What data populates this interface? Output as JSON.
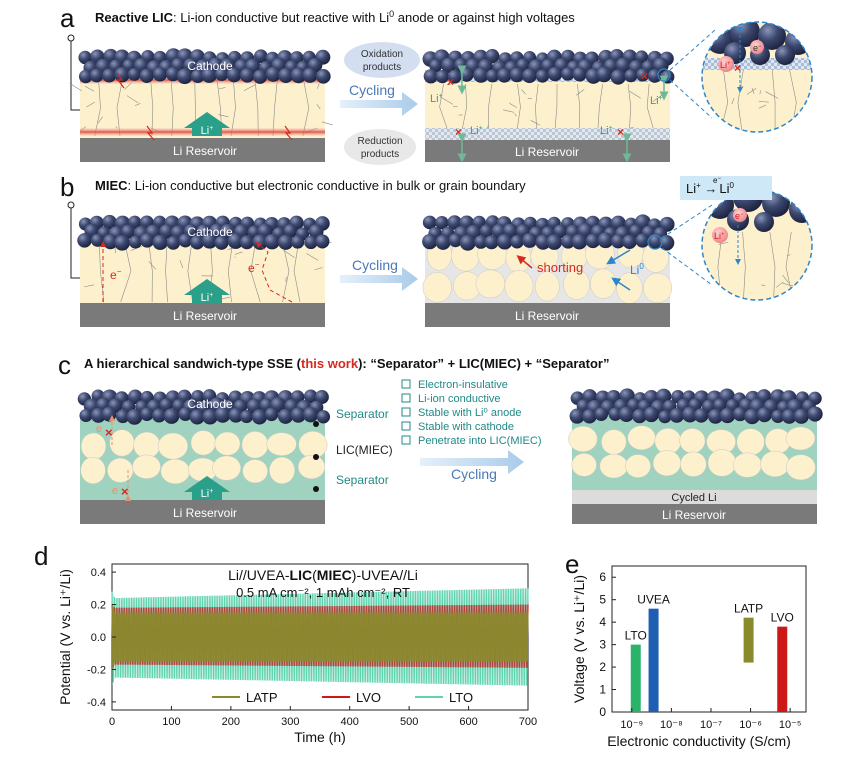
{
  "colors": {
    "cathode_ball": "#3b4668",
    "electrolyte": "#fdf0cc",
    "grain_line": "#8a8a8a",
    "reservoir": "#7a7a7a",
    "separator": "#9fd3bf",
    "red": "#d62a1e",
    "teal_text": "#1f8a86",
    "arrow_blue": "#b9d7ee",
    "latp": "#8a8a2c",
    "lvo": "#cc1818",
    "lto": "#62d3b0",
    "uvea": "#1f5fb3",
    "lto_bar": "#2bb36a"
  },
  "panel_a": {
    "letter": "a",
    "title_bold": "Reactive LIC",
    "title_rest": ": Li-ion conductive but reactive with Li",
    "title_sup": "0",
    "title_tail": " anode or against high voltages",
    "cathode": "Cathode",
    "li_ion": "Li",
    "li_ion_sup": "+",
    "reservoir": "Li Reservoir",
    "oxidation": "Oxidation products",
    "reduction": "Reduction products",
    "cycling": "Cycling",
    "zoom_eminus": "e",
    "zoom_eminus_sup": "−",
    "zoom_li": "Li",
    "zoom_li_sup": "+"
  },
  "panel_b": {
    "letter": "b",
    "title_bold": "MIEC",
    "title_rest": ": Li-ion conductive but electronic conductive in bulk or grain boundary",
    "cathode": "Cathode",
    "e_label": "e",
    "e_sup": "−",
    "li_ion": "Li",
    "li_ion_sup": "+",
    "reservoir": "Li Reservoir",
    "cycling": "Cycling",
    "shorting": "shorting",
    "li0": "Li",
    "li0_sup": "0",
    "reaction_li": "Li",
    "reaction_li_sup": "+",
    "reaction_e": "e",
    "reaction_e_sup": "−",
    "reaction_product": "Li",
    "reaction_product_sup": "0"
  },
  "panel_c": {
    "letter": "c",
    "title_pre": "A hierarchical sandwich-type SSE (",
    "title_red": "this work",
    "title_post": "): “Separator” + LIC(MIEC) + “Separator”",
    "cathode": "Cathode",
    "separator_top": "Separator",
    "middle": "LIC(MIEC)",
    "separator_bottom": "Separator",
    "li_ion": "Li",
    "li_ion_sup": "+",
    "e_label": "e",
    "reservoir": "Li Reservoir",
    "cycling": "Cycling",
    "cycled_li": "Cycled Li",
    "features": [
      "Electron-insulative",
      "Li-ion conductive",
      "Stable with Li⁰ anode",
      "Stable with cathode",
      "Penetrate into LIC(MIEC)"
    ]
  },
  "panel_d": {
    "letter": "d",
    "annotation_pre": "Li//UVEA-",
    "annotation_bold1": "LIC",
    "annotation_mid": "(",
    "annotation_bold2": "MIEC",
    "annotation_post": ")-UVEA//Li",
    "condition": "0.5 mA cm⁻², 1 mAh cm⁻², RT"
  },
  "panel_e": {
    "letter": "e"
  },
  "chart_data": [
    {
      "type": "line",
      "title": "Li//UVEA-LIC(MIEC)-UVEA//Li",
      "xlabel": "Time (h)",
      "ylabel": "Potential (V vs. Li⁺/Li)",
      "xlim": [
        0,
        700
      ],
      "ylim": [
        -0.45,
        0.45
      ],
      "xticks": [
        "0",
        "100",
        "200",
        "300",
        "400",
        "500",
        "600",
        "700"
      ],
      "yticks": [
        "-0.4",
        "-0.2",
        "0.0",
        "0.2",
        "0.4"
      ],
      "legend_position": "bottom",
      "series": [
        {
          "name": "LATP",
          "x": [
            0,
            5,
            700
          ],
          "upper": [
            0.2,
            0.15,
            0.15
          ],
          "lower": [
            -0.2,
            -0.15,
            -0.15
          ]
        },
        {
          "name": "LVO",
          "x": [
            0,
            5,
            700
          ],
          "upper": [
            0.2,
            0.18,
            0.2
          ],
          "lower": [
            -0.2,
            -0.17,
            -0.19
          ]
        },
        {
          "name": "LTO",
          "x": [
            0,
            5,
            700
          ],
          "upper": [
            0.28,
            0.24,
            0.3
          ],
          "lower": [
            -0.3,
            -0.25,
            -0.3
          ]
        }
      ]
    },
    {
      "type": "bar",
      "xlabel": "Electronic conductivity (S/cm)",
      "ylabel": "Voltage (V vs. Li⁺/Li)",
      "ylim": [
        0,
        6.5
      ],
      "yticks": [
        "0",
        "1",
        "2",
        "3",
        "4",
        "5",
        "6"
      ],
      "xticks": [
        "10⁻⁹",
        "10⁻⁸",
        "10⁻⁷",
        "10⁻⁶",
        "10⁻⁵"
      ],
      "xlog_range": [
        -9.5,
        -4.6
      ],
      "bars": [
        {
          "name": "LTO",
          "log_sigma": -8.9,
          "bottom": 0,
          "top": 3.0
        },
        {
          "name": "UVEA",
          "log_sigma": -8.45,
          "bottom": 0,
          "top": 4.6
        },
        {
          "name": "LATP",
          "log_sigma": -6.05,
          "bottom": 2.2,
          "top": 4.2
        },
        {
          "name": "LVO",
          "log_sigma": -5.2,
          "bottom": 0,
          "top": 3.8
        }
      ]
    }
  ]
}
